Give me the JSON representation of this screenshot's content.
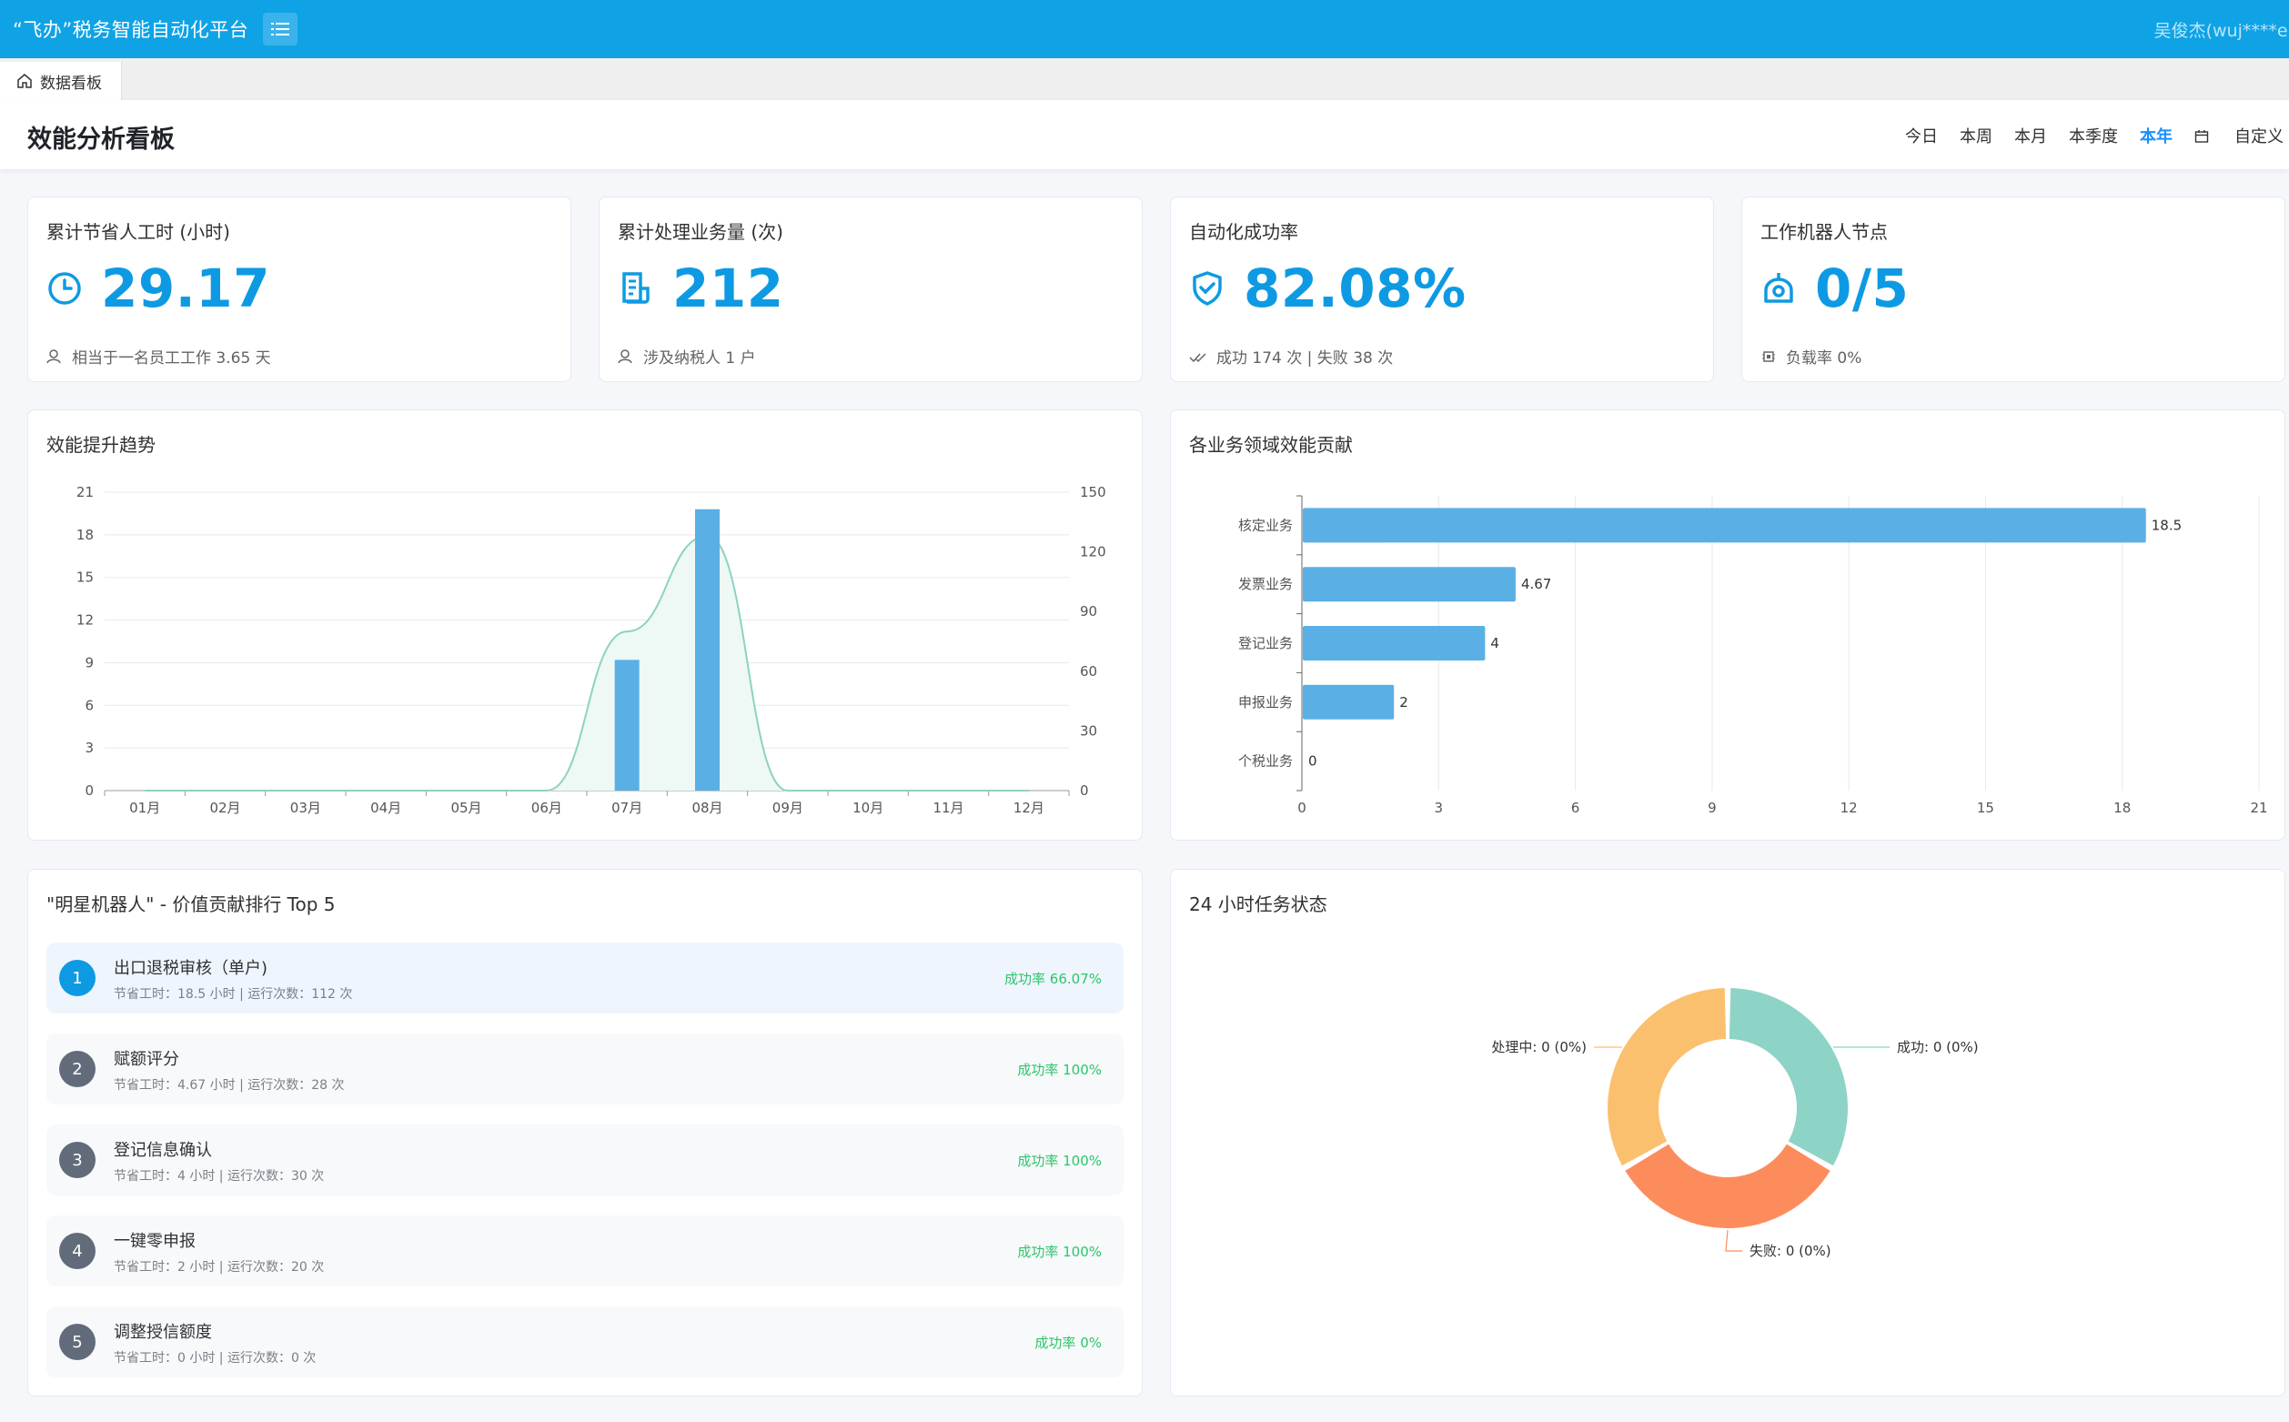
{
  "app": {
    "title": "“飞办”税务智能自动化平台",
    "user": "吴俊杰(wuj****e)"
  },
  "tabs": [
    {
      "label": "数据看板"
    }
  ],
  "header": {
    "title": "效能分析看板",
    "ranges": [
      "今日",
      "本周",
      "本月",
      "本季度",
      "本年",
      "自定义"
    ],
    "active_range": "本年"
  },
  "kpis": [
    {
      "title": "累计节省人工时 (小时)",
      "value": "29.17",
      "sub": "相当于一名员工工作 3.65 天",
      "icon": "clock-icon",
      "sub_icon": "user-icon"
    },
    {
      "title": "累计处理业务量 (次)",
      "value": "212",
      "sub": "涉及纳税人 1 户",
      "icon": "document-icon",
      "sub_icon": "user-icon"
    },
    {
      "title": "自动化成功率",
      "value": "82.08%",
      "sub": "成功 174 次 | 失败 38 次",
      "icon": "shield-check-icon",
      "sub_icon": "double-check-icon"
    },
    {
      "title": "工作机器人节点",
      "value": "0/5",
      "sub": "负载率 0%",
      "icon": "robot-icon",
      "sub_icon": "chip-icon"
    }
  ],
  "trend_chart": {
    "title": "效能提升趋势",
    "chart_data": {
      "type": "bar+area",
      "categories": [
        "01月",
        "02月",
        "03月",
        "04月",
        "05月",
        "06月",
        "07月",
        "08月",
        "09月",
        "10月",
        "11月",
        "12月"
      ],
      "series": [
        {
          "type": "bar",
          "axis": "left",
          "values": [
            0,
            0,
            0,
            0,
            0,
            0,
            9.2,
            19.8,
            0,
            0,
            0,
            0
          ]
        },
        {
          "type": "area",
          "axis": "right",
          "values": [
            0,
            0,
            0,
            0,
            0,
            0,
            80,
            128,
            0,
            0,
            0,
            0
          ]
        }
      ],
      "left_ticks": [
        0,
        3,
        6,
        9,
        12,
        15,
        18,
        21
      ],
      "right_ticks": [
        0,
        30,
        60,
        90,
        120,
        150
      ],
      "left_ylim": [
        0,
        21
      ],
      "right_ylim": [
        0,
        150
      ],
      "colors": {
        "bar": "#5ab0e5",
        "area_line": "#8dd3c0",
        "area_fill": "#eef8f5"
      }
    }
  },
  "domain_chart": {
    "title": "各业务领域效能贡献",
    "chart_data": {
      "type": "bar",
      "orientation": "horizontal",
      "categories": [
        "核定业务",
        "发票业务",
        "登记业务",
        "申报业务",
        "个税业务"
      ],
      "values": [
        18.5,
        4.67,
        4,
        2,
        0
      ],
      "value_labels": [
        "18.5",
        "4.67",
        "4",
        "2",
        "0"
      ],
      "xlim": [
        0,
        21
      ],
      "ticks": [
        0,
        3,
        6,
        9,
        12,
        15,
        18,
        21
      ],
      "color": "#5ab0e5"
    }
  },
  "ranking": {
    "title": "\"明星机器人\" - 价值贡献排行 Top 5",
    "items": [
      {
        "rank": "1",
        "name": "出口退税审核（单户)",
        "detail": "节省工时：18.5 小时 | 运行次数：112 次",
        "rate": "成功率 66.07%"
      },
      {
        "rank": "2",
        "name": "赋额评分",
        "detail": "节省工时：4.67 小时 | 运行次数：28 次",
        "rate": "成功率 100%"
      },
      {
        "rank": "3",
        "name": "登记信息确认",
        "detail": "节省工时：4 小时 | 运行次数：30 次",
        "rate": "成功率 100%"
      },
      {
        "rank": "4",
        "name": "一键零申报",
        "detail": "节省工时：2 小时 | 运行次数：20 次",
        "rate": "成功率 100%"
      },
      {
        "rank": "5",
        "name": "调整授信额度",
        "detail": "节省工时：0 小时 | 运行次数：0 次",
        "rate": "成功率 0%"
      }
    ]
  },
  "status_chart": {
    "title": "24 小时任务状态",
    "chart_data": {
      "type": "pie",
      "slices": [
        {
          "label": "成功: 0 (0%)",
          "value": 0,
          "color": "#8dd3c6"
        },
        {
          "label": "失败: 0 (0%)",
          "value": 0,
          "color": "#fd8c5d"
        },
        {
          "label": "处理中: 0 (0%)",
          "value": 0,
          "color": "#fbc06e"
        }
      ]
    }
  }
}
